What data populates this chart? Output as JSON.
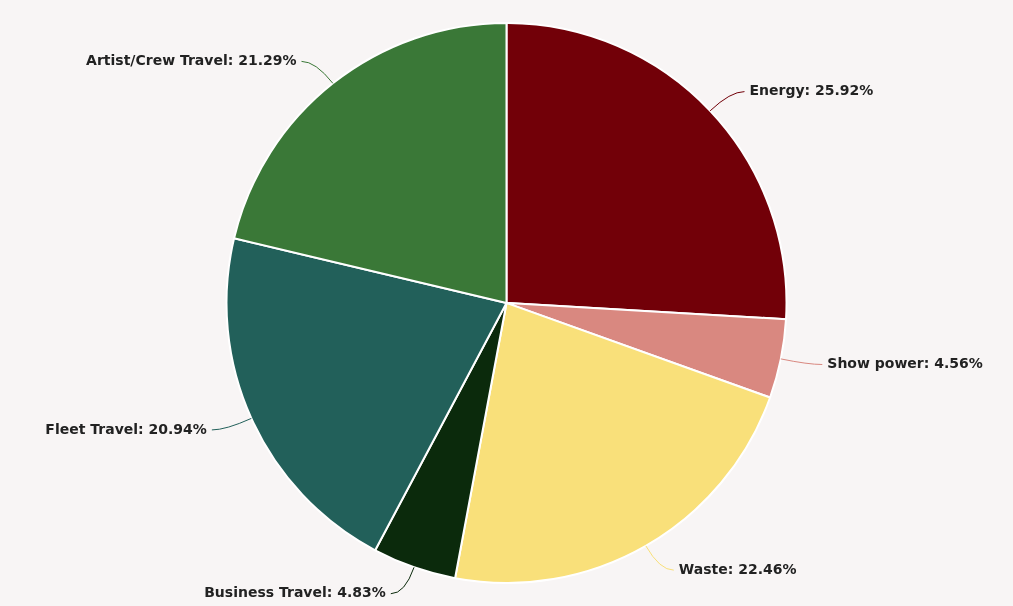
{
  "chart_data": {
    "type": "pie",
    "categories": [
      "Energy",
      "Show power",
      "Waste",
      "Business Travel",
      "Fleet Travel",
      "Artist/Crew Travel"
    ],
    "values": [
      25.92,
      4.56,
      22.46,
      4.83,
      20.94,
      21.29
    ],
    "value_labels": [
      "25.92%",
      "4.56%",
      "22.46%",
      "4.83%",
      "20.94%",
      "21.29%"
    ],
    "colors": [
      "#720008",
      "#d98880",
      "#f9e07a",
      "#0b2a0c",
      "#22605a",
      "#3a7837"
    ],
    "legend": false
  }
}
